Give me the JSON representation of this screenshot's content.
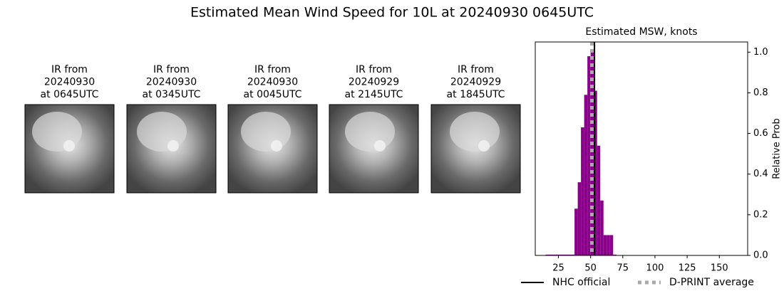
{
  "title": "Estimated Mean Wind Speed for 10L at 20240930 0645UTC",
  "panels": [
    {
      "lines": [
        "IR from",
        "20240930",
        "at 0645UTC"
      ]
    },
    {
      "lines": [
        "IR from",
        "20240930",
        "at 0345UTC"
      ]
    },
    {
      "lines": [
        "IR from",
        "20240930",
        "at 0045UTC"
      ]
    },
    {
      "lines": [
        "IR from",
        "20240929",
        "at 2145UTC"
      ]
    },
    {
      "lines": [
        "IR from",
        "20240929",
        "at 1845UTC"
      ]
    }
  ],
  "chart_data": {
    "type": "histogram",
    "title": "Estimated MSW, knots",
    "y_label": "Relative Prob",
    "color": "#8b008b",
    "bins": [
      15,
      17.5,
      20,
      22.5,
      25,
      27.5,
      30,
      32.5,
      35,
      37.5,
      40,
      42.5,
      45,
      47.5,
      50,
      52.5,
      55,
      57.5,
      60,
      62.5,
      65,
      67.5,
      70
    ],
    "values": [
      0.004,
      0.004,
      0.004,
      0.004,
      0.004,
      0.004,
      0.004,
      0.004,
      0.004,
      0.23,
      0.36,
      0.63,
      0.79,
      0.98,
      1.0,
      0.81,
      0.54,
      0.27,
      0.1,
      0.1,
      0.1,
      0.004
    ],
    "xlim": [
      7,
      172
    ],
    "xticks": [
      25,
      50,
      75,
      100,
      125,
      150
    ],
    "ylim": [
      0,
      1.05
    ],
    "yticks": [
      {
        "value": 0,
        "label": "0.0"
      },
      0.2,
      0.4,
      0.6,
      0.8,
      {
        "value": 1,
        "label": "1.0"
      }
    ],
    "lines": [
      {
        "name": "NHC official",
        "color": "#000000",
        "x": 53,
        "style": "solid"
      },
      {
        "name": "D-PRINT average",
        "color": "#aaaaaa",
        "x": 51,
        "style": "dotted"
      }
    ]
  }
}
